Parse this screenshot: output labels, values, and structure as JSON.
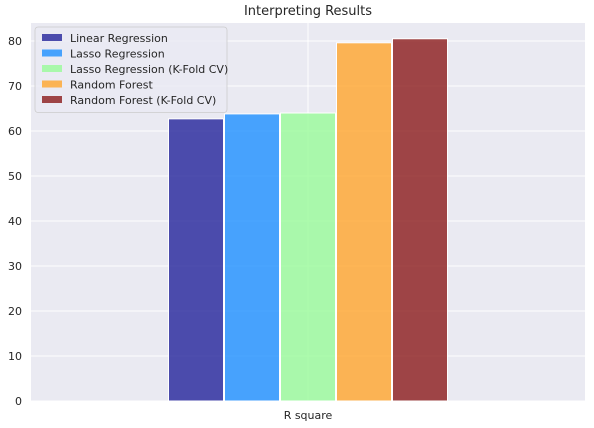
{
  "chart_data": {
    "type": "bar",
    "title": "Interpreting Results",
    "categories": [
      "R square"
    ],
    "xlabel": "",
    "ylabel": "",
    "ylim": [
      0,
      84
    ],
    "yticks": [
      0,
      10,
      20,
      30,
      40,
      50,
      60,
      70,
      80
    ],
    "grid": true,
    "legend_position": "top-left",
    "series": [
      {
        "name": "Linear Regression",
        "values": [
          62.7
        ],
        "color": "#23239a"
      },
      {
        "name": "Lasso Regression",
        "values": [
          63.8
        ],
        "color": "#1e90ff"
      },
      {
        "name": "Lasso Regression (K-Fold CV)",
        "values": [
          64.0
        ],
        "color": "#98fb98"
      },
      {
        "name": "Random Forest",
        "values": [
          79.6
        ],
        "color": "#ffa52c"
      },
      {
        "name": "Random Forest (K-Fold CV)",
        "values": [
          80.5
        ],
        "color": "#8b1a1a"
      }
    ],
    "plot_background": "#eaeaf2",
    "grid_color": "#ffffff"
  }
}
